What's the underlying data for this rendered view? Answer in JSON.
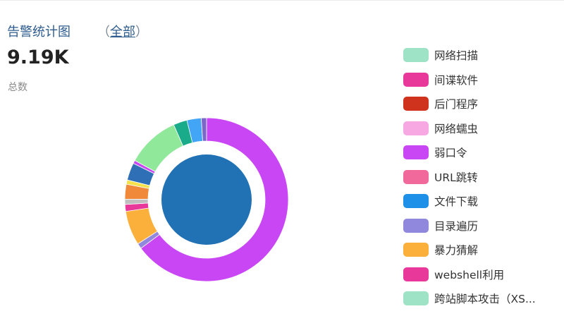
{
  "header": {
    "title": "告警统计图",
    "scope_open": "（",
    "scope_link": "全部",
    "scope_close": "）"
  },
  "summary": {
    "total": "9.19K",
    "total_label": "总数"
  },
  "chart_data": {
    "type": "pie",
    "variant": "donut-with-center-pie",
    "outer_ring": {
      "units": "approximate share (%) of total alerts",
      "slices": [
        {
          "name": "弱口令",
          "value": 62.0,
          "color": "#c946f5"
        },
        {
          "name": "目录遍历",
          "value": 1.0,
          "color": "#8f88dc"
        },
        {
          "name": "暴力猜解",
          "value": 6.5,
          "color": "#fbb03b"
        },
        {
          "name": "",
          "value": 1.3,
          "color": "#e8399b"
        },
        {
          "name": "",
          "value": 1.0,
          "color": "#c0c0c0"
        },
        {
          "name": "",
          "value": 2.8,
          "color": "#f08a3a"
        },
        {
          "name": "",
          "value": 0.8,
          "color": "#f5e14a"
        },
        {
          "name": "",
          "value": 3.3,
          "color": "#2f6fb5"
        },
        {
          "name": "",
          "value": 0.6,
          "color": "#c946f5"
        },
        {
          "name": "",
          "value": 10.0,
          "color": "#90e89a"
        },
        {
          "name": "",
          "value": 2.6,
          "color": "#1aab8a"
        },
        {
          "name": "",
          "value": 2.7,
          "color": "#42a5f5"
        },
        {
          "name": "",
          "value": 1.0,
          "color": "#7b68c8"
        }
      ]
    },
    "inner_pie": {
      "color": "#2171b5"
    }
  },
  "legend": [
    {
      "label": "网络扫描",
      "color": "#9ee3c6"
    },
    {
      "label": "间谍软件",
      "color": "#e8399b"
    },
    {
      "label": "后门程序",
      "color": "#d0331d"
    },
    {
      "label": "网络蠕虫",
      "color": "#f7a8e3"
    },
    {
      "label": "弱口令",
      "color": "#c946f5"
    },
    {
      "label": "URL跳转",
      "color": "#f0699a"
    },
    {
      "label": "文件下载",
      "color": "#1e90e8"
    },
    {
      "label": "目录遍历",
      "color": "#8f88dc"
    },
    {
      "label": "暴力猜解",
      "color": "#fbb03b"
    },
    {
      "label": "webshell利用",
      "color": "#e8399b"
    },
    {
      "label": "跨站脚本攻击（XS...",
      "color": "#9ee3c6"
    }
  ]
}
